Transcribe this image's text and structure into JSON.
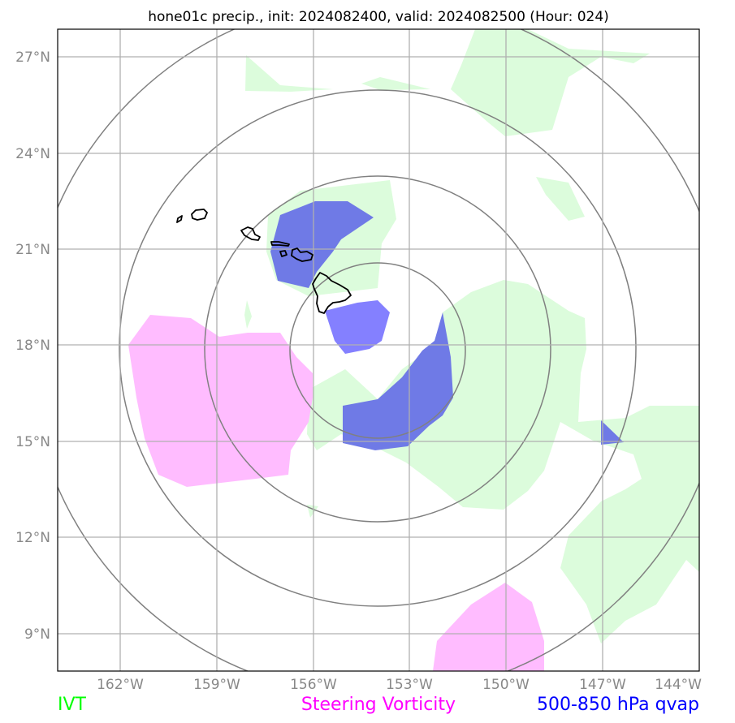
{
  "title": "hone01c precip., init: 2024082400, valid: 2024082500 (Hour: 024)",
  "lat_labels": [
    "27°N",
    "24°N",
    "21°N",
    "18°N",
    "15°N",
    "12°N",
    "9°N"
  ],
  "lon_labels": [
    "162°W",
    "159°W",
    "156°W",
    "153°W",
    "150°W",
    "147°W",
    "144°W"
  ],
  "legend": [
    {
      "label": "IVT",
      "color": "#00ff00"
    },
    {
      "label": "Steering Vorticity",
      "color": "#ff00ff"
    },
    {
      "label": "500-850 hPa qvap",
      "color": "#0000ff"
    }
  ],
  "colors": {
    "ivt_fill": "#dcfcdc",
    "vorticity_fill": "#ffbcff",
    "qvap_fill": "#6f7ae6",
    "qvap_light": "#8480ff",
    "range_ring": "#808080",
    "grid": "#b0b0b0",
    "coastline": "#000000"
  }
}
